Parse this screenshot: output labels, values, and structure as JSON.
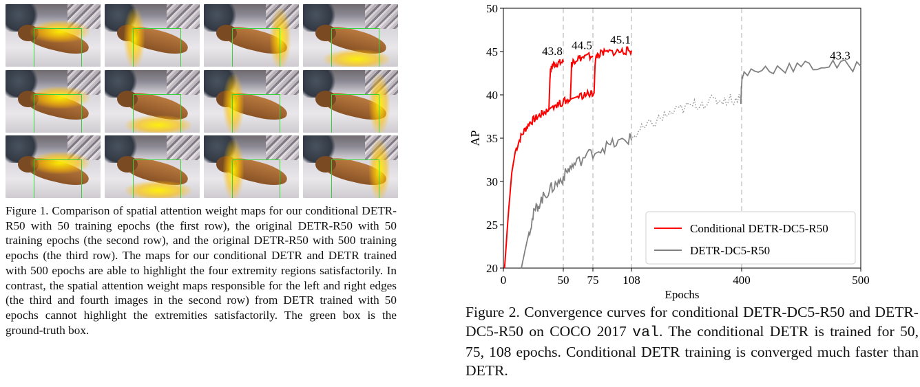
{
  "figure1": {
    "caption": "Figure 1. Comparison of spatial attention weight maps for our conditional DETR-R50 with 50 training epochs (the first row), the original DETR-R50 with 50 training epochs (the second row), and the original DETR-R50 with 500 training epochs (the third row). The maps for our conditional DETR and DETR trained with 500 epochs are able to highlight the four extremity regions satisfactorily. In contrast, the spatial attention weight maps responsible for the left and right edges (the third and fourth images in the second row) from DETR trained with 50 epochs cannot highlight the extremities satisfactorily. The green box is the ground-truth box.",
    "rows": [
      {
        "name": "conditional-detr-r50-50-epochs",
        "maps": [
          "top",
          "left",
          "right",
          "bottom"
        ]
      },
      {
        "name": "detr-r50-50-epochs",
        "maps": [
          "top",
          "bottom",
          "left",
          "right"
        ]
      },
      {
        "name": "detr-r50-500-epochs",
        "maps": [
          "top",
          "bottom",
          "left",
          "right"
        ]
      }
    ],
    "colors": {
      "ground_truth_box": "#38d13a",
      "attention": "#ffe600"
    }
  },
  "figure2": {
    "caption_parts": {
      "a": "Figure 2. Convergence curves for conditional DETR-DC5-R50 and DETR-DC5-R50 on COCO 2017 ",
      "code": "val",
      "b": ". The conditional DETR is trained for 50, 75, 108 epochs. Conditional DETR training is converged much faster than DETR."
    }
  },
  "chart_data": {
    "type": "line",
    "title": "",
    "xlabel": "Epochs",
    "ylabel": "AP",
    "xticks": [
      0,
      50,
      75,
      108,
      400,
      500
    ],
    "yticks": [
      20,
      25,
      30,
      35,
      40,
      45,
      50
    ],
    "ylim": [
      20,
      50
    ],
    "x_scale": "piecewise (0–108 expanded, 108–500 compressed)",
    "vlines": [
      50,
      75,
      108,
      400
    ],
    "legend": {
      "location": "lower-right",
      "entries": [
        "Conditional DETR-DC5-R50",
        "DETR-DC5-R50"
      ]
    },
    "series": [
      {
        "name": "Conditional DETR-DC5-R50 (50 epochs)",
        "color": "#ff0000",
        "x": [
          1,
          4,
          7,
          10,
          14,
          18,
          22,
          26,
          30,
          34,
          38,
          39,
          41,
          44,
          47,
          50
        ],
        "y": [
          20.0,
          26.0,
          31.0,
          33.5,
          35.0,
          36.0,
          36.8,
          37.2,
          37.6,
          38.0,
          38.3,
          42.5,
          43.5,
          43.6,
          43.7,
          43.8
        ]
      },
      {
        "name": "Conditional DETR-DC5-R50 (75 epochs)",
        "color": "#ff0000",
        "x": [
          38,
          42,
          47,
          52,
          56,
          57,
          59,
          62,
          66,
          70,
          75
        ],
        "y": [
          38.3,
          38.8,
          39.0,
          39.3,
          39.5,
          43.5,
          44.0,
          44.2,
          44.3,
          44.4,
          44.5
        ]
      },
      {
        "name": "Conditional DETR-DC5-R50 (108 epochs)",
        "color": "#ff0000",
        "x": [
          56,
          62,
          68,
          73,
          76,
          77,
          79,
          83,
          88,
          95,
          100,
          104,
          108
        ],
        "y": [
          39.5,
          39.8,
          40.0,
          40.1,
          40.2,
          44.0,
          44.6,
          44.8,
          44.9,
          45.0,
          45.0,
          45.1,
          45.1
        ]
      },
      {
        "name": "DETR-DC5-R50",
        "color": "#808080",
        "x": [
          15,
          18,
          22,
          26,
          30,
          35,
          40,
          45,
          50,
          55,
          60,
          70,
          80,
          90,
          100,
          108,
          130,
          160,
          190,
          220,
          250,
          280,
          310,
          340,
          370,
          398,
          400,
          402,
          420,
          440,
          460,
          480,
          500
        ],
        "y": [
          20.0,
          22.0,
          24.5,
          26.5,
          27.5,
          28.5,
          29.2,
          29.8,
          30.5,
          31.5,
          32.0,
          33.0,
          33.7,
          34.2,
          34.6,
          35.0,
          35.8,
          36.6,
          37.4,
          38.0,
          38.5,
          38.9,
          39.2,
          39.4,
          39.5,
          39.6,
          41.5,
          42.5,
          43.0,
          43.2,
          43.3,
          43.4,
          43.3
        ]
      }
    ],
    "annotations": [
      {
        "text": "43.8",
        "x": 50,
        "y": 43.8
      },
      {
        "text": "44.5",
        "x": 75,
        "y": 44.5
      },
      {
        "text": "45.1",
        "x": 108,
        "y": 45.1
      },
      {
        "text": "43.3",
        "x": 500,
        "y": 43.3
      }
    ]
  }
}
